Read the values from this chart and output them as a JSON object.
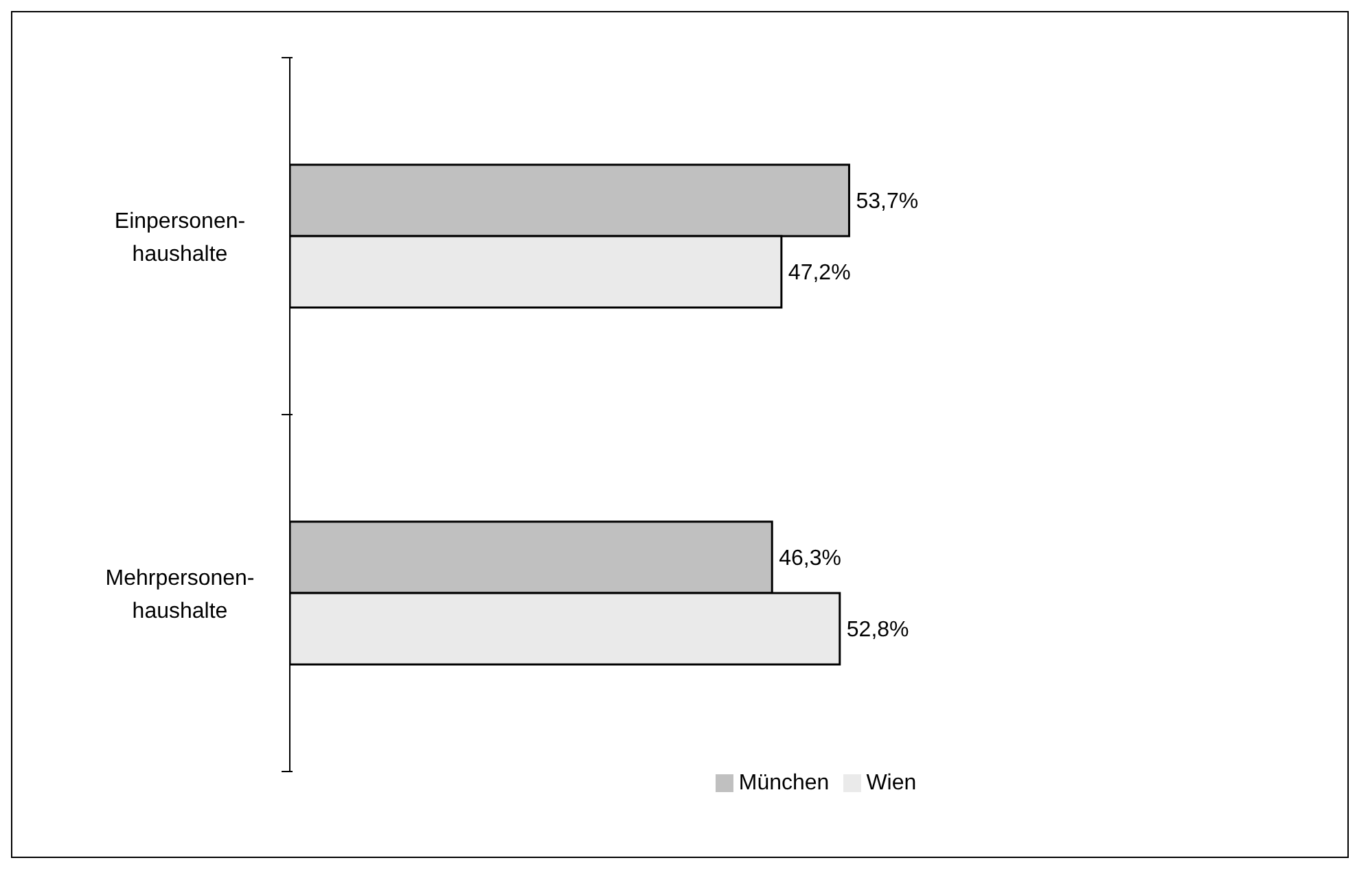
{
  "chart_data": {
    "type": "bar",
    "orientation": "horizontal",
    "categories": [
      "Einpersonen-haushalte",
      "Mehrpersonen-haushalte"
    ],
    "series": [
      {
        "name": "München",
        "color": "#c0c0c0",
        "values": [
          53.7,
          46.3
        ],
        "value_labels": [
          "53,7%",
          "46,3%"
        ]
      },
      {
        "name": "Wien",
        "color": "#eaeaea",
        "values": [
          47.2,
          52.8
        ],
        "value_labels": [
          "47,2%",
          "52,8%"
        ]
      }
    ],
    "tick_labels": "y",
    "legend": "bottom"
  }
}
